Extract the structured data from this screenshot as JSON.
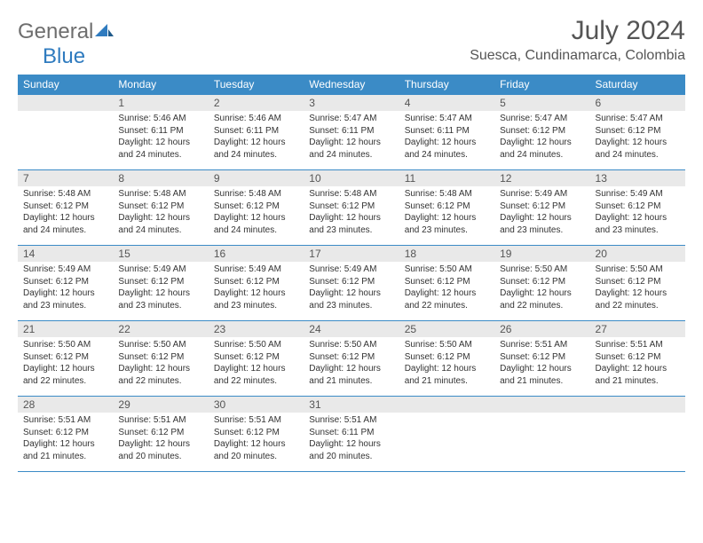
{
  "logo": {
    "word1": "General",
    "word2": "Blue"
  },
  "title": "July 2024",
  "location": "Suesca, Cundinamarca, Colombia",
  "colors": {
    "header_bg": "#3b8bc6",
    "header_text": "#ffffff",
    "daynum_bg": "#e9e9e9",
    "border": "#3b8bc6",
    "logo_gray": "#6e6e6e",
    "logo_blue": "#2f7bbf"
  },
  "weekdays": [
    "Sunday",
    "Monday",
    "Tuesday",
    "Wednesday",
    "Thursday",
    "Friday",
    "Saturday"
  ],
  "weeks": [
    [
      {
        "empty": true
      },
      {
        "n": "1",
        "sunrise": "Sunrise: 5:46 AM",
        "sunset": "Sunset: 6:11 PM",
        "daylight": "Daylight: 12 hours and 24 minutes."
      },
      {
        "n": "2",
        "sunrise": "Sunrise: 5:46 AM",
        "sunset": "Sunset: 6:11 PM",
        "daylight": "Daylight: 12 hours and 24 minutes."
      },
      {
        "n": "3",
        "sunrise": "Sunrise: 5:47 AM",
        "sunset": "Sunset: 6:11 PM",
        "daylight": "Daylight: 12 hours and 24 minutes."
      },
      {
        "n": "4",
        "sunrise": "Sunrise: 5:47 AM",
        "sunset": "Sunset: 6:11 PM",
        "daylight": "Daylight: 12 hours and 24 minutes."
      },
      {
        "n": "5",
        "sunrise": "Sunrise: 5:47 AM",
        "sunset": "Sunset: 6:12 PM",
        "daylight": "Daylight: 12 hours and 24 minutes."
      },
      {
        "n": "6",
        "sunrise": "Sunrise: 5:47 AM",
        "sunset": "Sunset: 6:12 PM",
        "daylight": "Daylight: 12 hours and 24 minutes."
      }
    ],
    [
      {
        "n": "7",
        "sunrise": "Sunrise: 5:48 AM",
        "sunset": "Sunset: 6:12 PM",
        "daylight": "Daylight: 12 hours and 24 minutes."
      },
      {
        "n": "8",
        "sunrise": "Sunrise: 5:48 AM",
        "sunset": "Sunset: 6:12 PM",
        "daylight": "Daylight: 12 hours and 24 minutes."
      },
      {
        "n": "9",
        "sunrise": "Sunrise: 5:48 AM",
        "sunset": "Sunset: 6:12 PM",
        "daylight": "Daylight: 12 hours and 24 minutes."
      },
      {
        "n": "10",
        "sunrise": "Sunrise: 5:48 AM",
        "sunset": "Sunset: 6:12 PM",
        "daylight": "Daylight: 12 hours and 23 minutes."
      },
      {
        "n": "11",
        "sunrise": "Sunrise: 5:48 AM",
        "sunset": "Sunset: 6:12 PM",
        "daylight": "Daylight: 12 hours and 23 minutes."
      },
      {
        "n": "12",
        "sunrise": "Sunrise: 5:49 AM",
        "sunset": "Sunset: 6:12 PM",
        "daylight": "Daylight: 12 hours and 23 minutes."
      },
      {
        "n": "13",
        "sunrise": "Sunrise: 5:49 AM",
        "sunset": "Sunset: 6:12 PM",
        "daylight": "Daylight: 12 hours and 23 minutes."
      }
    ],
    [
      {
        "n": "14",
        "sunrise": "Sunrise: 5:49 AM",
        "sunset": "Sunset: 6:12 PM",
        "daylight": "Daylight: 12 hours and 23 minutes."
      },
      {
        "n": "15",
        "sunrise": "Sunrise: 5:49 AM",
        "sunset": "Sunset: 6:12 PM",
        "daylight": "Daylight: 12 hours and 23 minutes."
      },
      {
        "n": "16",
        "sunrise": "Sunrise: 5:49 AM",
        "sunset": "Sunset: 6:12 PM",
        "daylight": "Daylight: 12 hours and 23 minutes."
      },
      {
        "n": "17",
        "sunrise": "Sunrise: 5:49 AM",
        "sunset": "Sunset: 6:12 PM",
        "daylight": "Daylight: 12 hours and 23 minutes."
      },
      {
        "n": "18",
        "sunrise": "Sunrise: 5:50 AM",
        "sunset": "Sunset: 6:12 PM",
        "daylight": "Daylight: 12 hours and 22 minutes."
      },
      {
        "n": "19",
        "sunrise": "Sunrise: 5:50 AM",
        "sunset": "Sunset: 6:12 PM",
        "daylight": "Daylight: 12 hours and 22 minutes."
      },
      {
        "n": "20",
        "sunrise": "Sunrise: 5:50 AM",
        "sunset": "Sunset: 6:12 PM",
        "daylight": "Daylight: 12 hours and 22 minutes."
      }
    ],
    [
      {
        "n": "21",
        "sunrise": "Sunrise: 5:50 AM",
        "sunset": "Sunset: 6:12 PM",
        "daylight": "Daylight: 12 hours and 22 minutes."
      },
      {
        "n": "22",
        "sunrise": "Sunrise: 5:50 AM",
        "sunset": "Sunset: 6:12 PM",
        "daylight": "Daylight: 12 hours and 22 minutes."
      },
      {
        "n": "23",
        "sunrise": "Sunrise: 5:50 AM",
        "sunset": "Sunset: 6:12 PM",
        "daylight": "Daylight: 12 hours and 22 minutes."
      },
      {
        "n": "24",
        "sunrise": "Sunrise: 5:50 AM",
        "sunset": "Sunset: 6:12 PM",
        "daylight": "Daylight: 12 hours and 21 minutes."
      },
      {
        "n": "25",
        "sunrise": "Sunrise: 5:50 AM",
        "sunset": "Sunset: 6:12 PM",
        "daylight": "Daylight: 12 hours and 21 minutes."
      },
      {
        "n": "26",
        "sunrise": "Sunrise: 5:51 AM",
        "sunset": "Sunset: 6:12 PM",
        "daylight": "Daylight: 12 hours and 21 minutes."
      },
      {
        "n": "27",
        "sunrise": "Sunrise: 5:51 AM",
        "sunset": "Sunset: 6:12 PM",
        "daylight": "Daylight: 12 hours and 21 minutes."
      }
    ],
    [
      {
        "n": "28",
        "sunrise": "Sunrise: 5:51 AM",
        "sunset": "Sunset: 6:12 PM",
        "daylight": "Daylight: 12 hours and 21 minutes."
      },
      {
        "n": "29",
        "sunrise": "Sunrise: 5:51 AM",
        "sunset": "Sunset: 6:12 PM",
        "daylight": "Daylight: 12 hours and 20 minutes."
      },
      {
        "n": "30",
        "sunrise": "Sunrise: 5:51 AM",
        "sunset": "Sunset: 6:12 PM",
        "daylight": "Daylight: 12 hours and 20 minutes."
      },
      {
        "n": "31",
        "sunrise": "Sunrise: 5:51 AM",
        "sunset": "Sunset: 6:11 PM",
        "daylight": "Daylight: 12 hours and 20 minutes."
      },
      {
        "empty": true
      },
      {
        "empty": true
      },
      {
        "empty": true
      }
    ]
  ]
}
